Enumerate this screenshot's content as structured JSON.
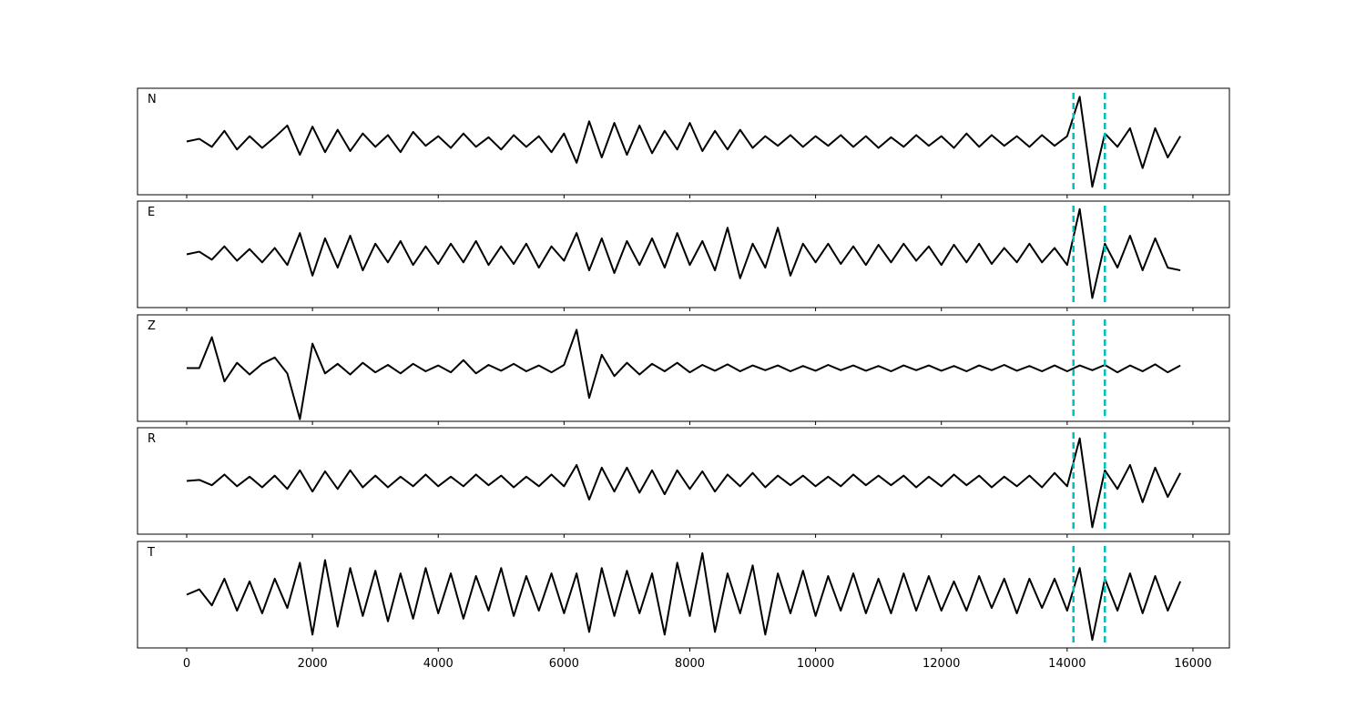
{
  "chart_data": [
    {
      "type": "line",
      "title": "N",
      "color": "#000000",
      "vlines": [
        14100,
        14600
      ],
      "vline_color": "#00bfbf",
      "xlim": [
        -782,
        16580
      ],
      "ylim": [
        -1,
        1
      ],
      "xticks": [
        0,
        2000,
        4000,
        6000,
        8000,
        10000,
        12000,
        14000,
        16000
      ],
      "x": [
        0,
        200,
        400,
        600,
        800,
        1000,
        1200,
        1400,
        1600,
        1800,
        2000,
        2200,
        2400,
        2600,
        2800,
        3000,
        3200,
        3400,
        3600,
        3800,
        4000,
        4200,
        4400,
        4600,
        4800,
        5000,
        5200,
        5400,
        5600,
        5800,
        6000,
        6200,
        6400,
        6600,
        6800,
        7000,
        7200,
        7400,
        7600,
        7800,
        8000,
        8200,
        8400,
        8600,
        8800,
        9000,
        9200,
        9400,
        9600,
        9800,
        10000,
        10200,
        10400,
        10600,
        10800,
        11000,
        11200,
        11400,
        11600,
        11800,
        12000,
        12200,
        12400,
        12600,
        12800,
        13000,
        13200,
        13400,
        13600,
        13800,
        14000,
        14200,
        14400,
        14600,
        14800,
        15000,
        15200,
        15400,
        15600,
        15800
      ],
      "values": [
        0,
        0.05,
        -0.1,
        0.2,
        -0.15,
        0.1,
        -0.12,
        0.08,
        0.3,
        -0.25,
        0.28,
        -0.2,
        0.22,
        -0.18,
        0.15,
        -0.1,
        0.12,
        -0.2,
        0.18,
        -0.08,
        0.1,
        -0.12,
        0.15,
        -0.1,
        0.08,
        -0.15,
        0.12,
        -0.1,
        0.1,
        -0.2,
        0.15,
        -0.4,
        0.38,
        -0.3,
        0.35,
        -0.25,
        0.3,
        -0.22,
        0.2,
        -0.15,
        0.35,
        -0.18,
        0.2,
        -0.15,
        0.22,
        -0.12,
        0.1,
        -0.08,
        0.12,
        -0.1,
        0.1,
        -0.08,
        0.12,
        -0.1,
        0.1,
        -0.12,
        0.08,
        -0.1,
        0.12,
        -0.08,
        0.1,
        -0.12,
        0.15,
        -0.1,
        0.12,
        -0.08,
        0.1,
        -0.1,
        0.12,
        -0.08,
        0.1,
        0.84,
        -0.85,
        0.15,
        -0.1,
        0.25,
        -0.5,
        0.25,
        -0.3,
        0.1
      ]
    },
    {
      "type": "line",
      "title": "E",
      "color": "#000000",
      "vlines": [
        14100,
        14600
      ],
      "vline_color": "#00bfbf",
      "xlim": [
        -782,
        16580
      ],
      "ylim": [
        -1,
        1
      ],
      "xticks": [
        0,
        2000,
        4000,
        6000,
        8000,
        10000,
        12000,
        14000,
        16000
      ],
      "x": [
        0,
        200,
        400,
        600,
        800,
        1000,
        1200,
        1400,
        1600,
        1800,
        2000,
        2200,
        2400,
        2600,
        2800,
        3000,
        3200,
        3400,
        3600,
        3800,
        4000,
        4200,
        4400,
        4600,
        4800,
        5000,
        5200,
        5400,
        5600,
        5800,
        6000,
        6200,
        6400,
        6600,
        6800,
        7000,
        7200,
        7400,
        7600,
        7800,
        8000,
        8200,
        8400,
        8600,
        8800,
        9000,
        9200,
        9400,
        9600,
        9800,
        10000,
        10200,
        10400,
        10600,
        10800,
        11000,
        11200,
        11400,
        11600,
        11800,
        12000,
        12200,
        12400,
        12600,
        12800,
        13000,
        13200,
        13400,
        13600,
        13800,
        14000,
        14200,
        14400,
        14600,
        14800,
        15000,
        15200,
        15400,
        15600,
        15800
      ],
      "values": [
        0,
        0.05,
        -0.1,
        0.15,
        -0.12,
        0.1,
        -0.15,
        0.12,
        -0.2,
        0.4,
        -0.4,
        0.3,
        -0.25,
        0.35,
        -0.3,
        0.2,
        -0.15,
        0.25,
        -0.2,
        0.15,
        -0.18,
        0.2,
        -0.15,
        0.25,
        -0.2,
        0.15,
        -0.18,
        0.2,
        -0.25,
        0.15,
        -0.12,
        0.4,
        -0.3,
        0.3,
        -0.35,
        0.25,
        -0.2,
        0.3,
        -0.25,
        0.4,
        -0.2,
        0.25,
        -0.3,
        0.5,
        -0.45,
        0.2,
        -0.25,
        0.5,
        -0.4,
        0.2,
        -0.15,
        0.2,
        -0.18,
        0.15,
        -0.2,
        0.18,
        -0.15,
        0.2,
        -0.12,
        0.15,
        -0.2,
        0.18,
        -0.15,
        0.2,
        -0.18,
        0.12,
        -0.15,
        0.2,
        -0.15,
        0.12,
        -0.2,
        0.85,
        -0.82,
        0.2,
        -0.25,
        0.35,
        -0.3,
        0.3,
        -0.25,
        -0.3
      ]
    },
    {
      "type": "line",
      "title": "Z",
      "color": "#000000",
      "vlines": [
        14100,
        14600
      ],
      "vline_color": "#00bfbf",
      "xlim": [
        -782,
        16580
      ],
      "ylim": [
        -1,
        1
      ],
      "xticks": [
        0,
        2000,
        4000,
        6000,
        8000,
        10000,
        12000,
        14000,
        16000
      ],
      "x": [
        0,
        200,
        400,
        600,
        800,
        1000,
        1200,
        1400,
        1600,
        1800,
        2000,
        2200,
        2400,
        2600,
        2800,
        3000,
        3200,
        3400,
        3600,
        3800,
        4000,
        4200,
        4400,
        4600,
        4800,
        5000,
        5200,
        5400,
        5600,
        5800,
        6000,
        6200,
        6400,
        6600,
        6800,
        7000,
        7200,
        7400,
        7600,
        7800,
        8000,
        8200,
        8400,
        8600,
        8800,
        9000,
        9200,
        9400,
        9600,
        9800,
        10000,
        10200,
        10400,
        10600,
        10800,
        11000,
        11200,
        11400,
        11600,
        11800,
        12000,
        12200,
        12400,
        12600,
        12800,
        13000,
        13200,
        13400,
        13600,
        13800,
        14000,
        14200,
        14400,
        14600,
        14800,
        15000,
        15200,
        15400,
        15600,
        15800
      ],
      "values": [
        0,
        0,
        0.58,
        -0.25,
        0.1,
        -0.12,
        0.08,
        0.2,
        -0.1,
        -0.96,
        0.46,
        -0.1,
        0.08,
        -0.12,
        0.1,
        -0.08,
        0.06,
        -0.1,
        0.08,
        -0.06,
        0.05,
        -0.08,
        0.15,
        -0.1,
        0.06,
        -0.05,
        0.08,
        -0.06,
        0.05,
        -0.08,
        0.06,
        0.72,
        -0.56,
        0.25,
        -0.15,
        0.1,
        -0.12,
        0.08,
        -0.06,
        0.1,
        -0.08,
        0.06,
        -0.05,
        0.07,
        -0.06,
        0.05,
        -0.04,
        0.05,
        -0.06,
        0.04,
        -0.05,
        0.06,
        -0.04,
        0.05,
        -0.05,
        0.04,
        -0.06,
        0.05,
        -0.04,
        0.05,
        -0.05,
        0.04,
        -0.06,
        0.05,
        -0.04,
        0.06,
        -0.05,
        0.04,
        -0.06,
        0.05,
        -0.06,
        0.05,
        -0.04,
        0.06,
        -0.08,
        0.05,
        -0.06,
        0.07,
        -0.08,
        0.05
      ]
    },
    {
      "type": "line",
      "title": "R",
      "color": "#000000",
      "vlines": [
        14100,
        14600
      ],
      "vline_color": "#00bfbf",
      "xlim": [
        -782,
        16580
      ],
      "ylim": [
        -1,
        1
      ],
      "xticks": [
        0,
        2000,
        4000,
        6000,
        8000,
        10000,
        12000,
        14000,
        16000
      ],
      "x": [
        0,
        200,
        400,
        600,
        800,
        1000,
        1200,
        1400,
        1600,
        1800,
        2000,
        2200,
        2400,
        2600,
        2800,
        3000,
        3200,
        3400,
        3600,
        3800,
        4000,
        4200,
        4400,
        4600,
        4800,
        5000,
        5200,
        5400,
        5600,
        5800,
        6000,
        6200,
        6400,
        6600,
        6800,
        7000,
        7200,
        7400,
        7600,
        7800,
        8000,
        8200,
        8400,
        8600,
        8800,
        9000,
        9200,
        9400,
        9600,
        9800,
        10000,
        10200,
        10400,
        10600,
        10800,
        11000,
        11200,
        11400,
        11600,
        11800,
        12000,
        12200,
        12400,
        12600,
        12800,
        13000,
        13200,
        13400,
        13600,
        13800,
        14000,
        14200,
        14400,
        14600,
        14800,
        15000,
        15200,
        15400,
        15600,
        15800
      ],
      "values": [
        0,
        0.02,
        -0.08,
        0.12,
        -0.1,
        0.08,
        -0.12,
        0.1,
        -0.15,
        0.2,
        -0.2,
        0.18,
        -0.15,
        0.2,
        -0.12,
        0.1,
        -0.12,
        0.08,
        -0.1,
        0.12,
        -0.1,
        0.08,
        -0.1,
        0.12,
        -0.08,
        0.1,
        -0.12,
        0.08,
        -0.1,
        0.12,
        -0.1,
        0.3,
        -0.35,
        0.25,
        -0.2,
        0.25,
        -0.22,
        0.2,
        -0.25,
        0.2,
        -0.15,
        0.18,
        -0.2,
        0.12,
        -0.1,
        0.15,
        -0.12,
        0.1,
        -0.08,
        0.1,
        -0.1,
        0.08,
        -0.1,
        0.12,
        -0.08,
        0.1,
        -0.08,
        0.1,
        -0.12,
        0.08,
        -0.1,
        0.12,
        -0.08,
        0.1,
        -0.12,
        0.08,
        -0.1,
        0.1,
        -0.12,
        0.15,
        -0.1,
        0.8,
        -0.87,
        0.2,
        -0.15,
        0.3,
        -0.4,
        0.25,
        -0.3,
        0.15
      ]
    },
    {
      "type": "line",
      "title": "T",
      "color": "#000000",
      "vlines": [
        14100,
        14600
      ],
      "vline_color": "#00bfbf",
      "xlim": [
        -782,
        16580
      ],
      "ylim": [
        -1,
        1
      ],
      "xticks": [
        0,
        2000,
        4000,
        6000,
        8000,
        10000,
        12000,
        14000,
        16000
      ],
      "x": [
        0,
        200,
        400,
        600,
        800,
        1000,
        1200,
        1400,
        1600,
        1800,
        2000,
        2200,
        2400,
        2600,
        2800,
        3000,
        3200,
        3400,
        3600,
        3800,
        4000,
        4200,
        4400,
        4600,
        4800,
        5000,
        5200,
        5400,
        5600,
        5800,
        6000,
        6200,
        6400,
        6600,
        6800,
        7000,
        7200,
        7400,
        7600,
        7800,
        8000,
        8200,
        8400,
        8600,
        8800,
        9000,
        9200,
        9400,
        9600,
        9800,
        10000,
        10200,
        10400,
        10600,
        10800,
        11000,
        11200,
        11400,
        11600,
        11800,
        12000,
        12200,
        12400,
        12600,
        12800,
        13000,
        13200,
        13400,
        13600,
        13800,
        14000,
        14200,
        14400,
        14600,
        14800,
        15000,
        15200,
        15400,
        15600,
        15800
      ],
      "values": [
        0,
        0.1,
        -0.2,
        0.3,
        -0.3,
        0.25,
        -0.35,
        0.3,
        -0.25,
        0.6,
        -0.75,
        0.65,
        -0.6,
        0.5,
        -0.4,
        0.45,
        -0.5,
        0.4,
        -0.45,
        0.5,
        -0.35,
        0.4,
        -0.45,
        0.35,
        -0.3,
        0.5,
        -0.4,
        0.35,
        -0.3,
        0.4,
        -0.35,
        0.4,
        -0.7,
        0.5,
        -0.4,
        0.45,
        -0.35,
        0.4,
        -0.75,
        0.6,
        -0.4,
        0.78,
        -0.7,
        0.4,
        -0.35,
        0.55,
        -0.75,
        0.4,
        -0.35,
        0.45,
        -0.4,
        0.35,
        -0.3,
        0.4,
        -0.35,
        0.3,
        -0.35,
        0.4,
        -0.3,
        0.35,
        -0.3,
        0.25,
        -0.3,
        0.35,
        -0.25,
        0.3,
        -0.35,
        0.3,
        -0.25,
        0.3,
        -0.3,
        0.5,
        -0.85,
        0.3,
        -0.3,
        0.4,
        -0.35,
        0.35,
        -0.3,
        0.25
      ]
    }
  ]
}
